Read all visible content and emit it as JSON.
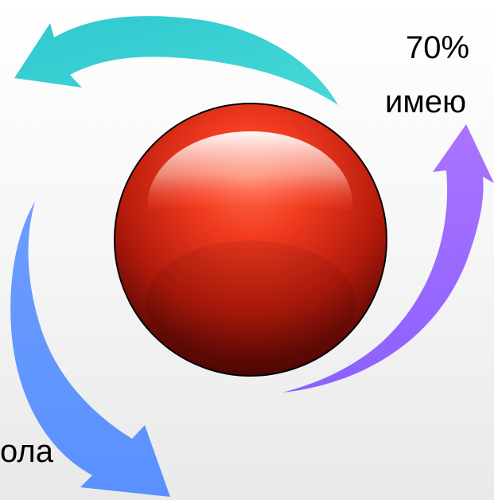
{
  "colors": {
    "arrow_top": "#3ccfd2",
    "arrow_right": "#9b6cff",
    "arrow_left": "#5f97ff",
    "sphere_light": "#ff5a3d",
    "sphere_dark": "#4a0604",
    "background": "#f3f3f3"
  },
  "labels": {
    "top": "70%",
    "mid": "имею",
    "bottom": "ола"
  },
  "icons": {
    "arrow_top": "curved-arrow-left-icon",
    "arrow_right": "curved-arrow-up-icon",
    "arrow_left": "curved-arrow-down-icon"
  }
}
